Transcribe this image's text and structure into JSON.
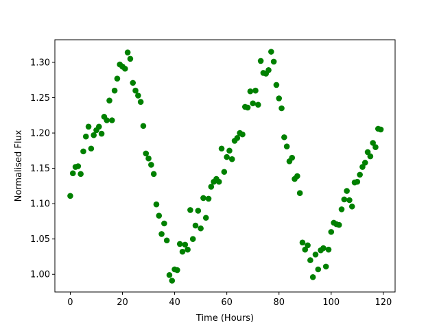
{
  "chart_data": {
    "type": "scatter",
    "title": "",
    "xlabel": "Time (Hours)",
    "ylabel": "Normalised Flux",
    "xlim": [
      -5.9,
      124.5
    ],
    "ylim": [
      0.975,
      1.332
    ],
    "xticks": [
      0,
      20,
      40,
      60,
      80,
      100,
      120
    ],
    "yticks": [
      1.0,
      1.05,
      1.1,
      1.15,
      1.2,
      1.25,
      1.3
    ],
    "xtick_labels": [
      "0",
      "20",
      "40",
      "60",
      "80",
      "100",
      "120"
    ],
    "ytick_labels": [
      "1.00",
      "1.05",
      "1.10",
      "1.15",
      "1.20",
      "1.25",
      "1.30"
    ],
    "grid": false,
    "legend": "none",
    "marker_color": "#008000",
    "series": [
      {
        "name": "",
        "x": [
          0,
          1,
          2,
          3,
          4,
          5,
          6,
          7,
          8,
          9,
          10,
          11,
          12,
          13,
          14,
          15,
          16,
          17,
          18,
          19,
          20,
          21,
          22,
          23,
          24,
          25,
          26,
          27,
          28,
          29,
          30,
          31,
          32,
          33,
          34,
          35,
          36,
          37,
          38,
          39,
          40,
          41,
          42,
          43,
          44,
          45,
          46,
          47,
          48,
          49,
          50,
          51,
          52,
          53,
          54,
          55,
          56,
          57,
          58,
          59,
          60,
          61,
          62,
          63,
          64,
          65,
          66,
          67,
          68,
          69,
          70,
          71,
          72,
          73,
          74,
          75,
          76,
          77,
          78,
          79,
          80,
          81,
          82,
          83,
          84,
          85,
          86,
          87,
          88,
          89,
          90,
          91,
          92,
          93,
          94,
          95,
          96,
          97,
          98,
          99,
          100,
          101,
          102,
          103,
          104,
          105,
          106,
          107,
          108,
          109,
          110,
          111,
          112,
          113,
          114,
          115,
          116,
          117,
          118,
          119
        ],
        "y": [
          1.111,
          1.143,
          1.152,
          1.153,
          1.142,
          1.174,
          1.195,
          1.209,
          1.178,
          1.197,
          1.204,
          1.209,
          1.199,
          1.223,
          1.218,
          1.246,
          1.218,
          1.26,
          1.277,
          1.297,
          1.294,
          1.291,
          1.314,
          1.305,
          1.271,
          1.26,
          1.253,
          1.244,
          1.21,
          1.171,
          1.164,
          1.155,
          1.142,
          1.099,
          1.083,
          1.057,
          1.072,
          1.048,
          0.999,
          0.991,
          1.007,
          1.006,
          1.043,
          1.032,
          1.042,
          1.035,
          1.091,
          1.05,
          1.069,
          1.09,
          1.065,
          1.108,
          1.08,
          1.107,
          1.124,
          1.131,
          1.135,
          1.131,
          1.178,
          1.145,
          1.166,
          1.175,
          1.163,
          1.189,
          1.193,
          1.2,
          1.198,
          1.237,
          1.236,
          1.259,
          1.242,
          1.26,
          1.24,
          1.302,
          1.285,
          1.284,
          1.289,
          1.315,
          1.301,
          1.268,
          1.249,
          1.235,
          1.194,
          1.181,
          1.16,
          1.165,
          1.135,
          1.139,
          1.115,
          1.045,
          1.035,
          1.041,
          1.02,
          0.996,
          1.028,
          1.007,
          1.034,
          1.037,
          1.011,
          1.035,
          1.06,
          1.073,
          1.071,
          1.07,
          1.092,
          1.106,
          1.118,
          1.105,
          1.096,
          1.13,
          1.131,
          1.141,
          1.152,
          1.158,
          1.173,
          1.167,
          1.186,
          1.18,
          1.206,
          1.205
        ]
      }
    ]
  }
}
